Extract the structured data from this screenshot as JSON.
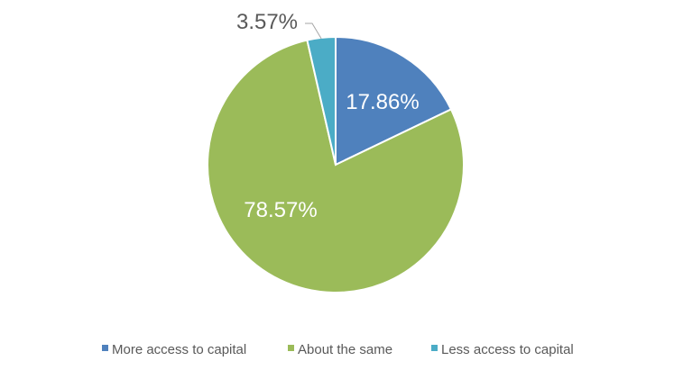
{
  "chart_data": {
    "type": "pie",
    "title": "",
    "slices": [
      {
        "name": "More access to capital",
        "value": 17.86,
        "label": "17.86%",
        "color": "#4F81BD",
        "label_position": "inside"
      },
      {
        "name": "About the same",
        "value": 78.57,
        "label": "78.57%",
        "color": "#9BBB59",
        "label_position": "inside"
      },
      {
        "name": "Less access to capital",
        "value": 3.57,
        "label": "3.57%",
        "color": "#4BACC6",
        "label_position": "outside"
      }
    ],
    "start_angle_deg": 0,
    "direction": "clockwise",
    "legend_position": "bottom"
  }
}
